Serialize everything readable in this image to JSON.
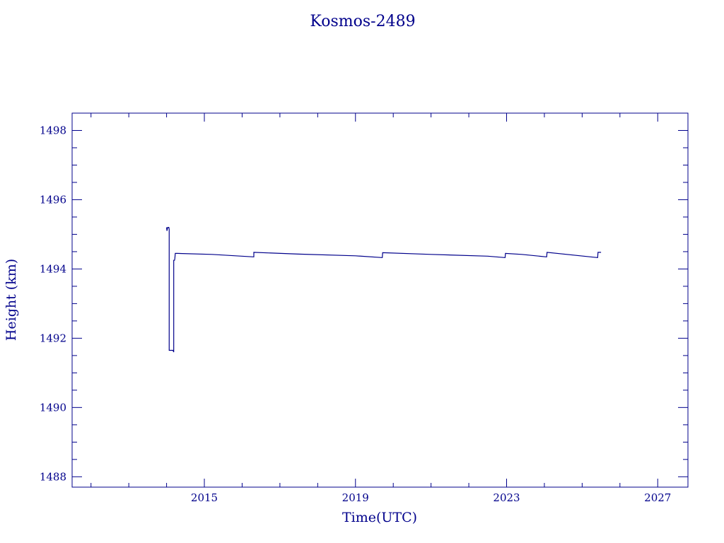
{
  "chart_data": {
    "type": "line",
    "title": "Kosmos-2489",
    "xlabel": "Time(UTC)",
    "ylabel": "Height (km)",
    "xlim": [
      2011.5,
      2027.8
    ],
    "ylim": [
      1487.7,
      1498.5
    ],
    "x_ticks": [
      2015,
      2019,
      2023,
      2027
    ],
    "y_ticks": [
      1488,
      1490,
      1492,
      1494,
      1496,
      1498
    ],
    "grid": false,
    "color": "#00008b",
    "series": [
      {
        "x": [
          2014.0,
          2014.01,
          2014.03,
          2014.06,
          2014.07,
          2014.07,
          2014.09,
          2014.11,
          2014.17,
          2014.19,
          2014.19,
          2014.21,
          2014.22,
          2014.23,
          2014.28,
          2015.2,
          2016.3,
          2016.31,
          2016.31,
          2017.5,
          2019.0,
          2019.7,
          2019.71,
          2019.72,
          2021.0,
          2022.5,
          2022.95,
          2022.96,
          2022.97,
          2023.4,
          2024.05,
          2024.06,
          2024.07,
          2025.4,
          2025.41,
          2025.42,
          2025.5
        ],
        "y": [
          1495.2,
          1495.1,
          1495.2,
          1495.2,
          1495.15,
          1491.65,
          1491.65,
          1491.65,
          1491.65,
          1491.6,
          1494.25,
          1494.25,
          1494.3,
          1494.45,
          1494.45,
          1494.42,
          1494.35,
          1494.35,
          1494.48,
          1494.43,
          1494.38,
          1494.33,
          1494.33,
          1494.47,
          1494.42,
          1494.37,
          1494.33,
          1494.33,
          1494.45,
          1494.42,
          1494.35,
          1494.35,
          1494.48,
          1494.33,
          1494.33,
          1494.48,
          1494.48
        ]
      }
    ]
  }
}
